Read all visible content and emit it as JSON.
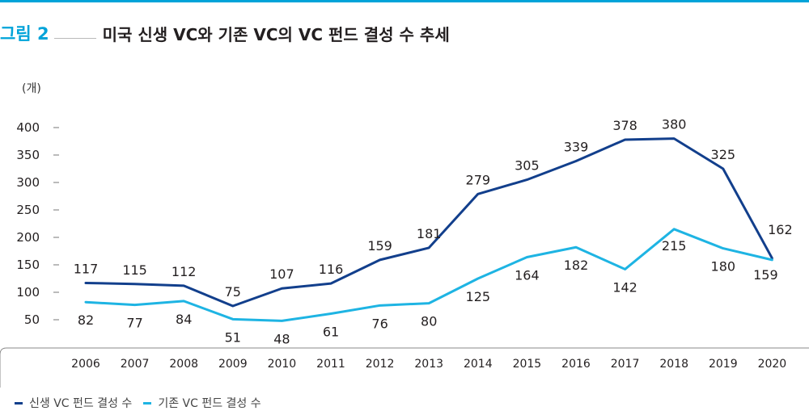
{
  "figure": {
    "label": "그림 2",
    "title": "미국 신생 VC와 기존 VC의 VC 펀드 결성 수 추세",
    "accent_color": "#00a3d9"
  },
  "chart_data": {
    "type": "line",
    "unit_label": "(개)",
    "categories": [
      "2006",
      "2007",
      "2008",
      "2009",
      "2010",
      "2011",
      "2012",
      "2013",
      "2014",
      "2015",
      "2016",
      "2017",
      "2018",
      "2019",
      "2020"
    ],
    "y_ticks": [
      "400",
      "350",
      "300",
      "250",
      "200",
      "150",
      "100",
      "50"
    ],
    "ylim": [
      50,
      400
    ],
    "grid": false,
    "legend_position": "bottom-left",
    "series": [
      {
        "name": "신생 VC 펀드 결성 수",
        "color": "#123f8c",
        "values": [
          117,
          115,
          112,
          75,
          107,
          116,
          159,
          181,
          279,
          305,
          339,
          378,
          380,
          325,
          162
        ]
      },
      {
        "name": "기존 VC 펀드 결성 수",
        "color": "#1eb4e3",
        "values": [
          82,
          77,
          84,
          51,
          48,
          61,
          76,
          80,
          125,
          164,
          182,
          142,
          215,
          180,
          159
        ]
      }
    ]
  }
}
